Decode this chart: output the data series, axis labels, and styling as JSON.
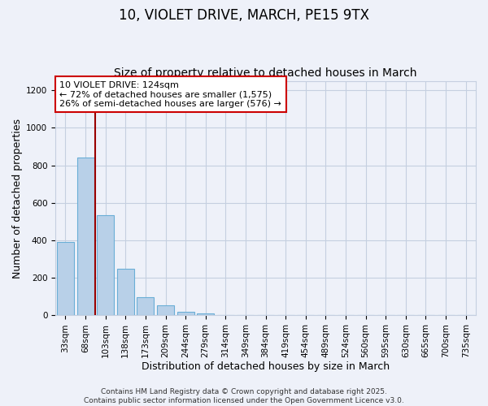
{
  "title": "10, VIOLET DRIVE, MARCH, PE15 9TX",
  "subtitle": "Size of property relative to detached houses in March",
  "xlabel": "Distribution of detached houses by size in March",
  "ylabel": "Number of detached properties",
  "bar_labels": [
    "33sqm",
    "68sqm",
    "103sqm",
    "138sqm",
    "173sqm",
    "209sqm",
    "244sqm",
    "279sqm",
    "314sqm",
    "349sqm",
    "384sqm",
    "419sqm",
    "454sqm",
    "489sqm",
    "524sqm",
    "560sqm",
    "595sqm",
    "630sqm",
    "665sqm",
    "700sqm",
    "735sqm"
  ],
  "bar_values": [
    390,
    840,
    535,
    248,
    97,
    52,
    18,
    10,
    3,
    0,
    0,
    0,
    0,
    0,
    0,
    0,
    0,
    0,
    0,
    0,
    0
  ],
  "bar_color": "#b8d0e8",
  "bar_edge_color": "#6aaed6",
  "vline_x": 1.5,
  "vline_color": "#990000",
  "annotation_line1": "10 VIOLET DRIVE: 124sqm",
  "annotation_line2": "← 72% of detached houses are smaller (1,575)",
  "annotation_line3": "26% of semi-detached houses are larger (576) →",
  "annotation_box_color": "#ffffff",
  "annotation_box_edge": "#cc0000",
  "ylim": [
    0,
    1250
  ],
  "yticks": [
    0,
    200,
    400,
    600,
    800,
    1000,
    1200
  ],
  "footer_line1": "Contains HM Land Registry data © Crown copyright and database right 2025.",
  "footer_line2": "Contains public sector information licensed under the Open Government Licence v3.0.",
  "background_color": "#eef1f9",
  "grid_color": "#c5cfe0",
  "title_fontsize": 12,
  "subtitle_fontsize": 10,
  "axis_label_fontsize": 9,
  "tick_fontsize": 7.5,
  "annotation_fontsize": 8,
  "footer_fontsize": 6.5
}
